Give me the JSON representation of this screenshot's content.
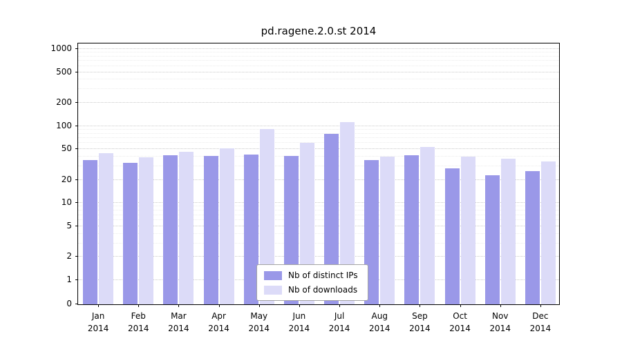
{
  "title": "pd.ragene.2.0.st 2014",
  "chart_data": {
    "type": "bar",
    "scale": "symlog",
    "title": "pd.ragene.2.0.st 2014",
    "xlabel": "",
    "ylabel": "",
    "year": "2014",
    "categories": [
      "Jan",
      "Feb",
      "Mar",
      "Apr",
      "May",
      "Jun",
      "Jul",
      "Aug",
      "Sep",
      "Oct",
      "Nov",
      "Dec"
    ],
    "series": [
      {
        "name": "Nb of distinct IPs",
        "color": "#9a98e8",
        "values": [
          36,
          33,
          42,
          41,
          43,
          41,
          80,
          36,
          42,
          28,
          23,
          26
        ]
      },
      {
        "name": "Nb of downloads",
        "color": "#dcdbf8",
        "values": [
          44,
          39,
          46,
          51,
          92,
          60,
          112,
          40,
          53,
          40,
          38,
          35
        ]
      }
    ],
    "y_ticks": [
      0,
      1,
      2,
      5,
      10,
      20,
      50,
      100,
      200,
      500,
      1000
    ],
    "y_minor_ticks": [
      3,
      4,
      6,
      7,
      8,
      9,
      30,
      40,
      60,
      70,
      80,
      90,
      300,
      400,
      600,
      700,
      800,
      900
    ],
    "ylim": [
      0,
      1250
    ],
    "grid": true,
    "legend_position": "bottom-center"
  }
}
